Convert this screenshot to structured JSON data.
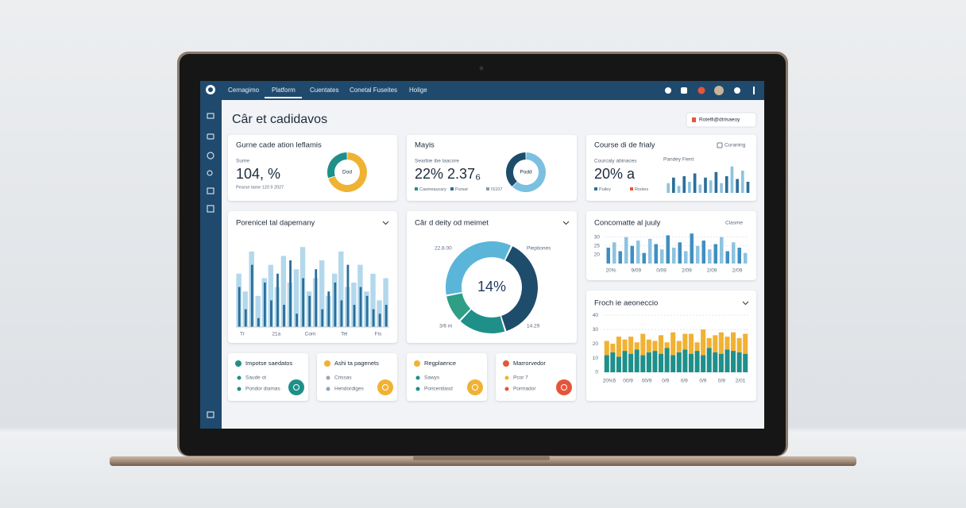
{
  "nav": {
    "items": [
      "Cernagimo",
      "Platform",
      "Cuentates",
      "Conetal Fuseites",
      "Holige"
    ]
  },
  "page_title": "Câr et cadidavos",
  "filter_button": "Rotelfi@dtrisaeoy",
  "kpis": [
    {
      "title": "Gurne cade ation leflamis",
      "sub": "Sume",
      "value": "104, %",
      "foot": "Pearse tame 120 9 2027",
      "donut": {
        "label": "Dod",
        "values": [
          70,
          30
        ],
        "colors": [
          "#f0b233",
          "#1f8f8a"
        ]
      }
    },
    {
      "title": "Mayis",
      "sub": "Searbie ibe laacore",
      "value": "22% 2.37₆",
      "legend": [
        "Casmeaucary",
        "Pursar",
        "IS107"
      ],
      "legend_colors": [
        "#1f8f8a",
        "#2c6e99",
        "#8a98a8"
      ],
      "donut": {
        "label": "Podd",
        "values": [
          62,
          38
        ],
        "colors": [
          "#7cc0e0",
          "#1e4d6b"
        ]
      }
    },
    {
      "title": "Course di de frialy",
      "action": "Curaning",
      "sub": "Courcaly abinaces",
      "value": "20% a",
      "legend": [
        "Puiley",
        "Rooles"
      ],
      "legend_colors": [
        "#2c6e99",
        "#e5553a"
      ],
      "chart_title": "Pandey Fient",
      "ylim": [
        0,
        100
      ],
      "colors": [
        "#8dc3e0",
        "#2c6e99"
      ],
      "values": [
        35,
        55,
        25,
        60,
        40,
        70,
        30,
        55,
        45,
        75,
        35,
        60,
        95,
        50,
        80,
        40
      ]
    }
  ],
  "panels": {
    "dependency": {
      "title": "Porenicel tal dapemany",
      "ylim": [
        0,
        100
      ],
      "xlabels": [
        "Tr",
        "21a",
        "Com",
        "Tel",
        "Fis"
      ],
      "series": [
        {
          "color": "#b3d8ec",
          "values": [
            60,
            40,
            85,
            35,
            55,
            70,
            45,
            80,
            50,
            65,
            90,
            40,
            55,
            75,
            35,
            60,
            85,
            45,
            50,
            70,
            40,
            60,
            30,
            55
          ]
        },
        {
          "color": "#2c6e99",
          "values": [
            45,
            20,
            70,
            10,
            50,
            30,
            60,
            25,
            75,
            15,
            55,
            35,
            65,
            20,
            40,
            50,
            30,
            70,
            25,
            45,
            35,
            20,
            15,
            25
          ]
        }
      ]
    },
    "donut": {
      "title": "Câr d deity od meimet",
      "center": "14%",
      "labels": [
        "22.8.00",
        "Pieptiones",
        "3/6 m",
        "14.29"
      ],
      "values": [
        35,
        38,
        17,
        10
      ],
      "colors": [
        "#5bb5d9",
        "#1e4d6b",
        "#1f8f8a",
        "#2e9e86"
      ]
    },
    "monthly": {
      "title": "Concomatte al juuly",
      "action": "Clasme",
      "ylim": [
        15,
        33
      ],
      "yticks": [
        30,
        25,
        20
      ],
      "xlabels": [
        "20%",
        "9/09",
        "0/09",
        "2/09",
        "2/09",
        "2/09"
      ],
      "colors": [
        "#3f8fc1",
        "#8dc3e0"
      ],
      "values": [
        24,
        27,
        22,
        30,
        25,
        28,
        21,
        29,
        26,
        23,
        31,
        24,
        27,
        22,
        32,
        25,
        28,
        23,
        26,
        30,
        22,
        27,
        24,
        21
      ]
    },
    "stacked": {
      "title": "Froch ie aeoneccio",
      "ylim": [
        0,
        44
      ],
      "yticks": [
        40,
        30,
        20,
        10,
        0
      ],
      "xlabels": [
        "20%5",
        "00/9",
        "00/9",
        "0/9",
        "0/9",
        "0/9",
        "0/9",
        "2/01"
      ],
      "series": [
        {
          "color": "#1f8f8a",
          "values": [
            12,
            14,
            11,
            15,
            13,
            16,
            12,
            14,
            15,
            13,
            17,
            12,
            14,
            16,
            13,
            15,
            12,
            17,
            14,
            13,
            16,
            15,
            14,
            13
          ]
        },
        {
          "color": "#f0b233",
          "values": [
            10,
            6,
            14,
            8,
            12,
            5,
            15,
            9,
            7,
            13,
            4,
            16,
            8,
            11,
            14,
            6,
            18,
            7,
            12,
            15,
            9,
            13,
            10,
            14
          ]
        }
      ]
    }
  },
  "mini_cards": [
    {
      "title": "Impotse saedatos",
      "items": [
        "Saude ot",
        "Pondor diamas"
      ],
      "bullet_colors": [
        "#1f8f8a",
        "#1f8f8a"
      ],
      "color": "#1f8f8a"
    },
    {
      "title": "Ashi ta pagenets",
      "items": [
        "Crissas",
        "Hendordiges"
      ],
      "bullet_colors": [
        "#9aa6b4",
        "#8fa3c0"
      ],
      "color": "#f0b233"
    },
    {
      "title": "Regplaence",
      "items": [
        "Sawys",
        "Poricentlasd"
      ],
      "bullet_colors": [
        "#1f8f8a",
        "#1f8f8a"
      ],
      "color": "#f0b233"
    },
    {
      "title": "Marrorvedor",
      "items": [
        "Pcor 7",
        "Pormador"
      ],
      "bullet_colors": [
        "#f0b233",
        "#e5553a"
      ],
      "color": "#e5553a"
    }
  ]
}
